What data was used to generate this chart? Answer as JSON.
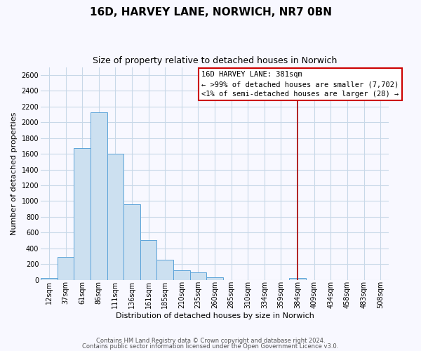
{
  "title": "16D, HARVEY LANE, NORWICH, NR7 0BN",
  "subtitle": "Size of property relative to detached houses in Norwich",
  "xlabel": "Distribution of detached houses by size in Norwich",
  "ylabel": "Number of detached properties",
  "bin_labels": [
    "12sqm",
    "37sqm",
    "61sqm",
    "86sqm",
    "111sqm",
    "136sqm",
    "161sqm",
    "185sqm",
    "210sqm",
    "235sqm",
    "260sqm",
    "285sqm",
    "310sqm",
    "334sqm",
    "359sqm",
    "384sqm",
    "409sqm",
    "434sqm",
    "458sqm",
    "483sqm",
    "508sqm"
  ],
  "bar_values": [
    20,
    295,
    1670,
    2130,
    1600,
    960,
    505,
    255,
    120,
    95,
    30,
    0,
    0,
    0,
    0,
    20,
    0,
    0,
    0,
    0,
    0
  ],
  "bar_color": "#cce0f0",
  "bar_edge_color": "#5ba3d9",
  "vline_x_index": 15,
  "vline_color": "#aa0000",
  "annotation_title": "16D HARVEY LANE: 381sqm",
  "annotation_line1": "← >99% of detached houses are smaller (7,702)",
  "annotation_line2": "<1% of semi-detached houses are larger (28) →",
  "annotation_box_color": "#ffffff",
  "annotation_border_color": "#cc0000",
  "ylim": [
    0,
    2700
  ],
  "yticks": [
    0,
    200,
    400,
    600,
    800,
    1000,
    1200,
    1400,
    1600,
    1800,
    2000,
    2200,
    2400,
    2600
  ],
  "footer_line1": "Contains HM Land Registry data © Crown copyright and database right 2024.",
  "footer_line2": "Contains public sector information licensed under the Open Government Licence v3.0.",
  "bg_color": "#f8f8ff",
  "grid_color": "#c8d8e8",
  "title_fontsize": 11,
  "subtitle_fontsize": 9,
  "ylabel_fontsize": 8,
  "xlabel_fontsize": 8,
  "tick_fontsize": 7,
  "annotation_fontsize": 7.5,
  "footer_fontsize": 6
}
